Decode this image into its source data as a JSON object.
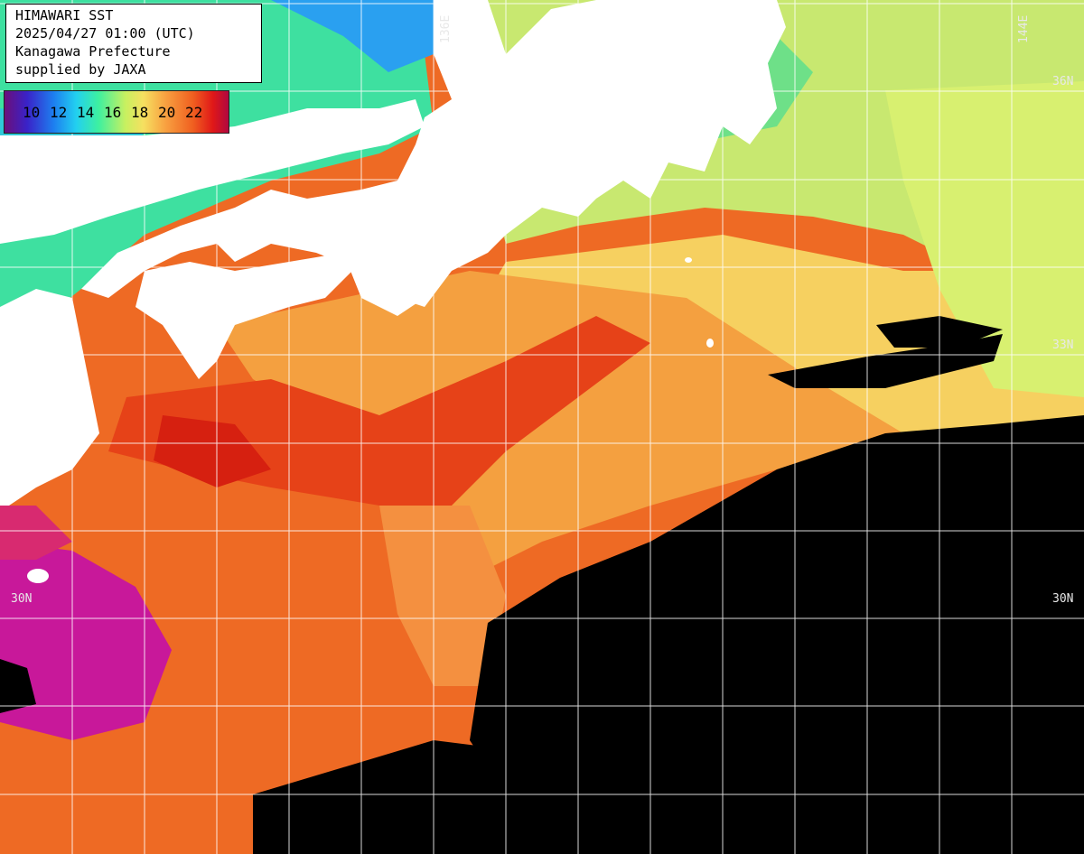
{
  "title_lines": {
    "line1": "HIMAWARI SST",
    "line2": "2025/04/27 01:00 (UTC)",
    "line3": "Kanagawa Prefecture",
    "line4": "supplied by JAXA"
  },
  "legend": {
    "ticks": [
      "10",
      "12",
      "14",
      "16",
      "18",
      "20",
      "22"
    ]
  },
  "grid_labels": {
    "lon_136": "136E",
    "lon_144": "144E",
    "lat_36": "36N",
    "lat_33": "33N",
    "lat_30_left": "30N",
    "lat_30_right": "30N"
  },
  "colors": {
    "land": "#ffffff",
    "no_data": "#000000",
    "grid": "#ffffff"
  }
}
